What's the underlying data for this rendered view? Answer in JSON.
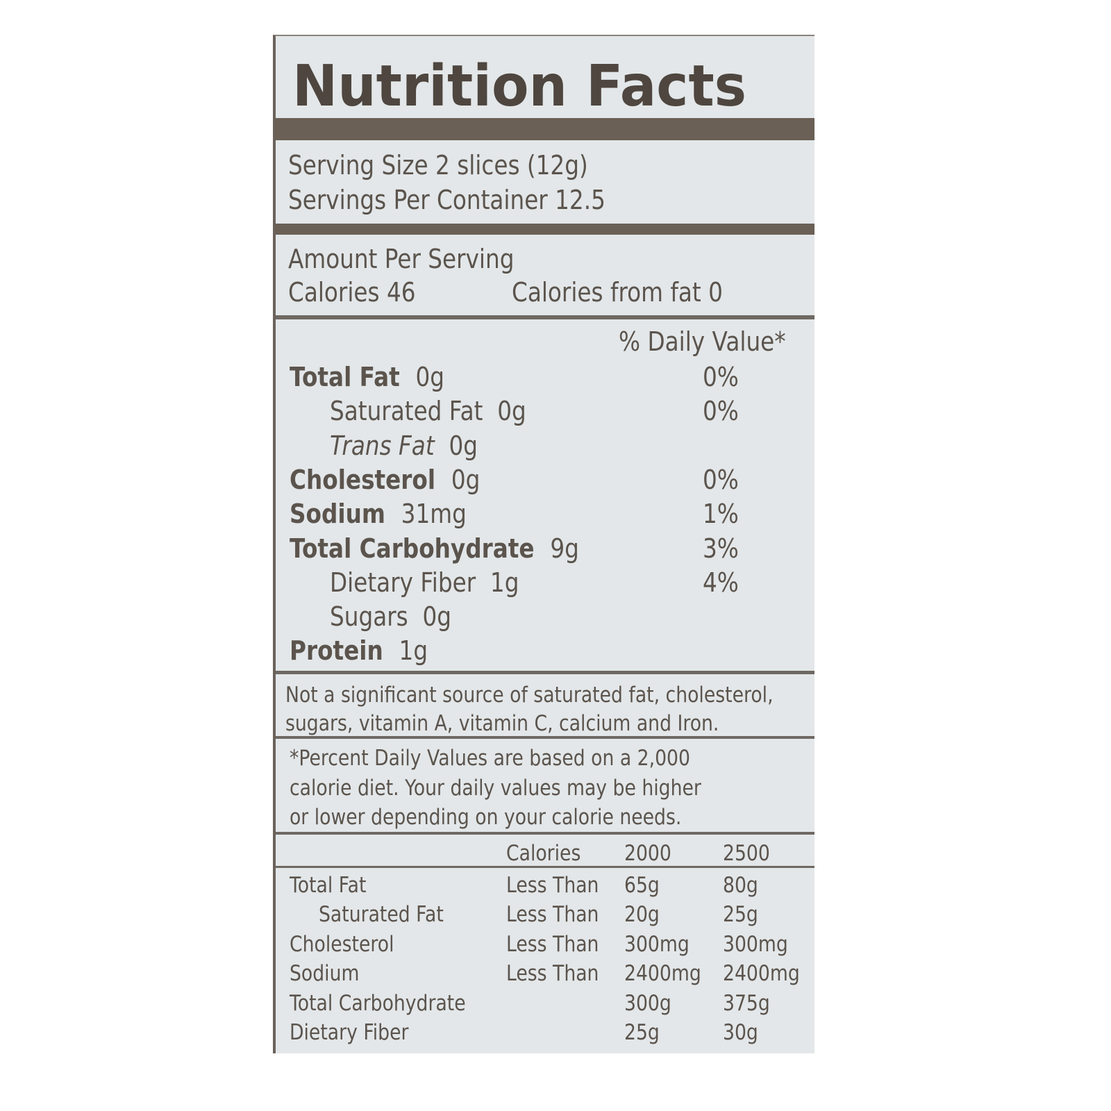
{
  "title": "Nutrition Facts",
  "serving_size": "Serving Size 2 slices (12g)",
  "servings_per_container": "Servings Per Container 12.5",
  "amount_per_serving": "Amount Per Serving",
  "calories": "Calories 46",
  "calories_from_fat": "Calories from fat 0",
  "daily_value_header": "% Daily Value*",
  "nutrients": [
    {
      "name": "Total Fat",
      "amount": "0g",
      "dv": "0%",
      "bold": true,
      "indent": false,
      "italic": false
    },
    {
      "name": "Saturated Fat",
      "amount": "0g",
      "dv": "0%",
      "bold": false,
      "indent": true,
      "italic": false
    },
    {
      "name": "Trans Fat",
      "amount": "0g",
      "dv": "",
      "bold": false,
      "indent": true,
      "italic": true
    },
    {
      "name": "Cholesterol",
      "amount": "0g",
      "dv": "0%",
      "bold": true,
      "indent": false,
      "italic": false
    },
    {
      "name": "Sodium",
      "amount": "31mg",
      "dv": "1%",
      "bold": true,
      "indent": false,
      "italic": false
    },
    {
      "name": "Total Carbohydrate",
      "amount": "9g",
      "dv": "3%",
      "bold": true,
      "indent": false,
      "italic": false
    },
    {
      "name": "Dietary Fiber",
      "amount": "1g",
      "dv": "4%",
      "bold": false,
      "indent": true,
      "italic": false
    },
    {
      "name": "Sugars",
      "amount": "0g",
      "dv": "",
      "bold": false,
      "indent": true,
      "italic": false
    },
    {
      "name": "Protein",
      "amount": "1g",
      "dv": "",
      "bold": true,
      "indent": false,
      "italic": false
    }
  ],
  "note_lines": [
    "Not a significant source of saturated fat, cholesterol,",
    "sugars, vitamin A, vitamin C, calcium and Iron."
  ],
  "footnote_lines": [
    "*Percent Daily Values are based on a 2,000",
    "calorie diet. Your daily values may be higher",
    "or lower depending on your calorie needs."
  ],
  "reference_table": {
    "header": [
      "",
      "Calories",
      "2000",
      "2500"
    ],
    "rows": [
      {
        "name": "Total Fat",
        "qualifier": "Less Than",
        "v2000": "65g",
        "v2500": "80g",
        "indent": false
      },
      {
        "name": "Saturated Fat",
        "qualifier": "Less Than",
        "v2000": "20g",
        "v2500": "25g",
        "indent": true
      },
      {
        "name": "Cholesterol",
        "qualifier": "Less Than",
        "v2000": "300mg",
        "v2500": "300mg",
        "indent": false
      },
      {
        "name": "Sodium",
        "qualifier": "Less Than",
        "v2000": "2400mg",
        "v2500": "2400mg",
        "indent": false
      },
      {
        "name": "Total Carbohydrate",
        "qualifier": "",
        "v2000": "300g",
        "v2500": "375g",
        "indent": false
      },
      {
        "name": "Dietary Fiber",
        "qualifier": "",
        "v2000": "25g",
        "v2500": "30g",
        "indent": false
      }
    ]
  },
  "colors": {
    "text": "#5b544d",
    "bar": "#6b6056",
    "background": "#e3e7e9"
  }
}
